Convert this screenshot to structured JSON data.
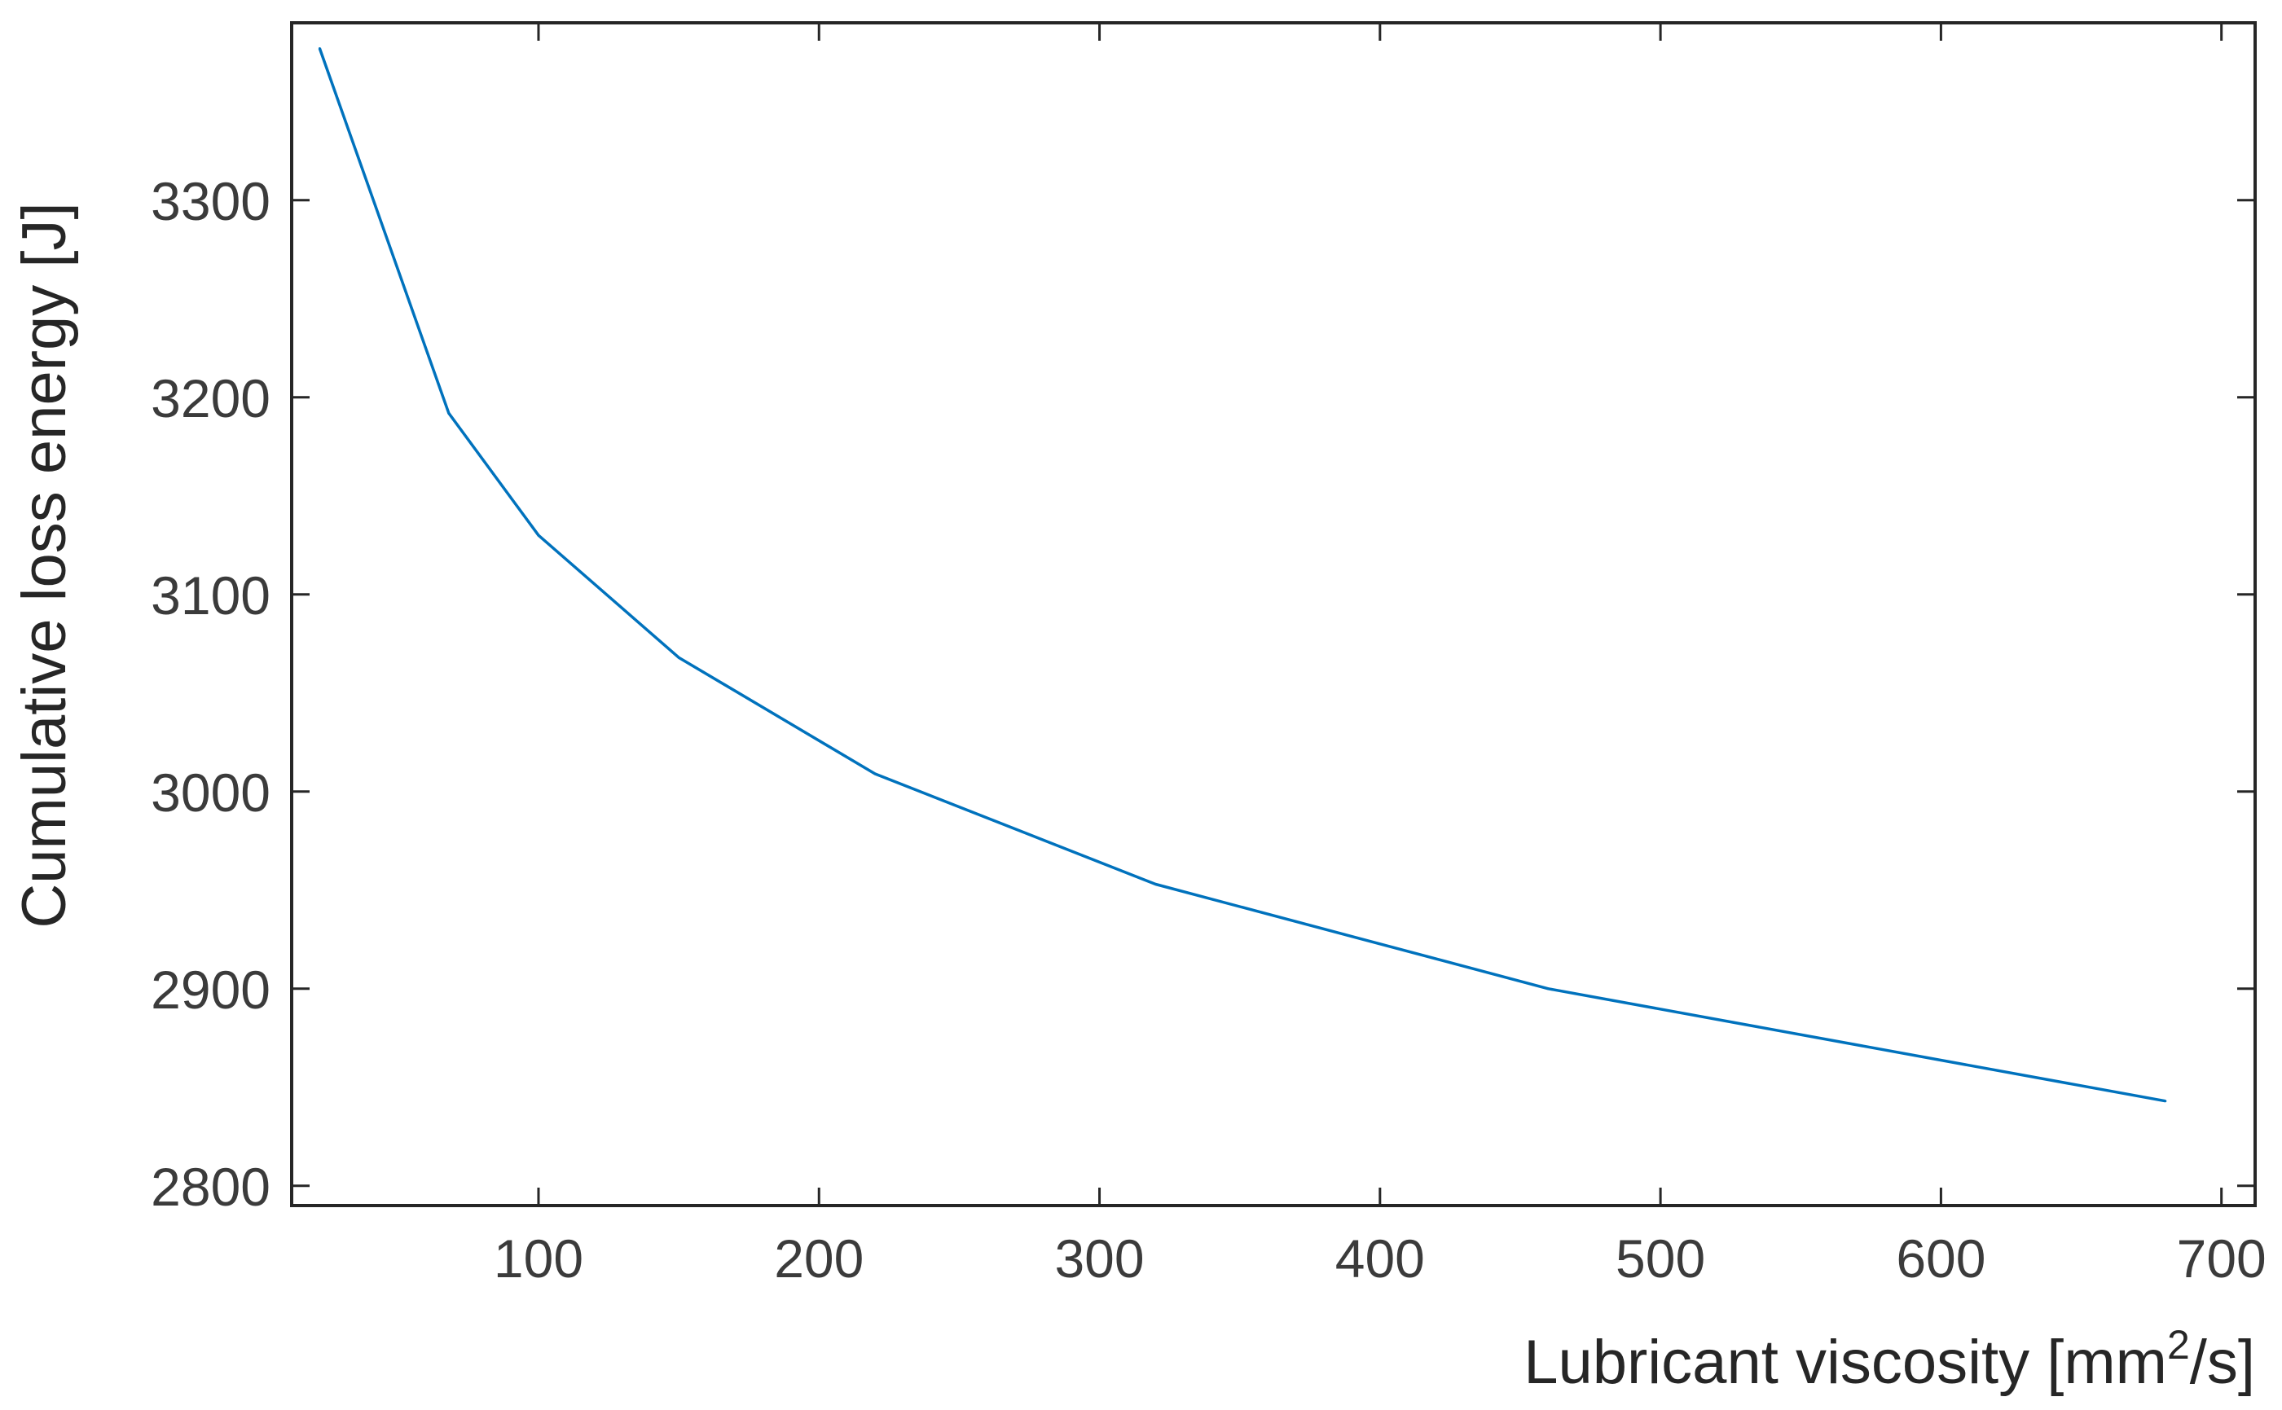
{
  "chart_data": {
    "type": "line",
    "title": "",
    "xlabel": {
      "before_superscript": "Lubricant viscosity [mm",
      "superscript": "2",
      "after_superscript": "/s]"
    },
    "ylabel": "Cumulative loss energy [J]",
    "xlim": [
      12,
      712
    ],
    "ylim": [
      2790,
      3390
    ],
    "xticks": [
      100,
      200,
      300,
      400,
      500,
      600,
      700
    ],
    "xtick_labels": [
      "100",
      "200",
      "300",
      "400",
      "500",
      "600",
      "700"
    ],
    "yticks": [
      2800,
      2900,
      3000,
      3100,
      3200,
      3300
    ],
    "ytick_labels": [
      "2800",
      "2900",
      "3000",
      "3100",
      "3200",
      "3300"
    ],
    "grid": false,
    "legend": "none",
    "colors": {
      "line": "#0072BD",
      "axes": "#262626",
      "tick_text": "#3b3b3b"
    },
    "series": [
      {
        "x": [
          22,
          68,
          100,
          150,
          220,
          320,
          460,
          680
        ],
        "y": [
          3377,
          3192,
          3130,
          3068,
          3009,
          2953,
          2900,
          2843
        ]
      }
    ]
  }
}
